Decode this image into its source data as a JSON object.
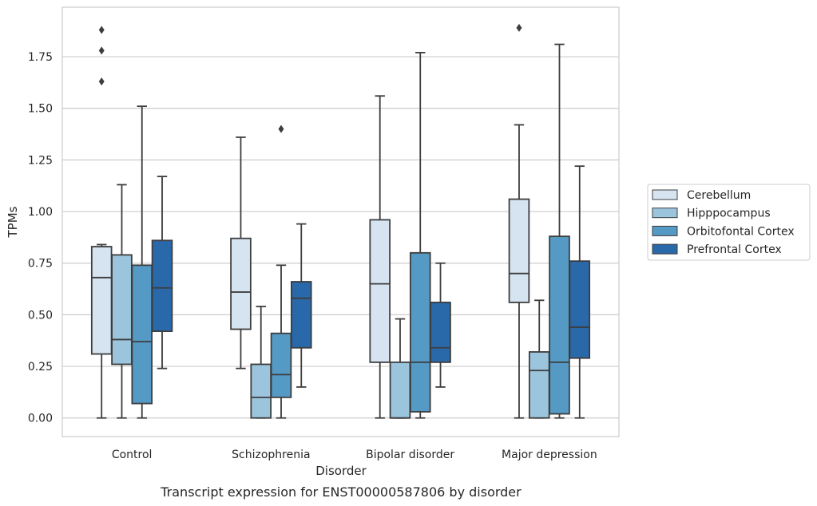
{
  "caption": "Transcript expression for ENST00000587806 by disorder",
  "chart_data": {
    "type": "box",
    "title": "",
    "xlabel": "Disorder",
    "ylabel": "TPMs",
    "ylim": [
      -0.09,
      1.99
    ],
    "yticks": [
      "0.00",
      "0.25",
      "0.50",
      "0.75",
      "1.00",
      "1.25",
      "1.50",
      "1.75"
    ],
    "categories": [
      "Control",
      "Schizophrenia",
      "Bipolar disorder",
      "Major depression"
    ],
    "grid": "horizontal",
    "legend_position": "right",
    "series": [
      {
        "name": "Cerebellum",
        "color": "#d6e4f2",
        "boxes": [
          {
            "min": 0.0,
            "q1": 0.31,
            "median": 0.68,
            "q3": 0.83,
            "max": 0.84,
            "outliers": [
              1.63,
              1.78,
              1.88
            ]
          },
          {
            "min": 0.24,
            "q1": 0.43,
            "median": 0.61,
            "q3": 0.87,
            "max": 1.36,
            "outliers": []
          },
          {
            "min": 0.0,
            "q1": 0.27,
            "median": 0.65,
            "q3": 0.96,
            "max": 1.56,
            "outliers": []
          },
          {
            "min": 0.0,
            "q1": 0.56,
            "median": 0.7,
            "q3": 1.06,
            "max": 1.42,
            "outliers": [
              1.89
            ]
          }
        ]
      },
      {
        "name": "Hipppocampus",
        "color": "#9bc4dd",
        "boxes": [
          {
            "min": 0.0,
            "q1": 0.26,
            "median": 0.38,
            "q3": 0.79,
            "max": 1.13,
            "outliers": []
          },
          {
            "min": 0.0,
            "q1": 0.0,
            "median": 0.1,
            "q3": 0.26,
            "max": 0.54,
            "outliers": []
          },
          {
            "min": 0.0,
            "q1": 0.0,
            "median": 0.0,
            "q3": 0.27,
            "max": 0.48,
            "outliers": []
          },
          {
            "min": 0.0,
            "q1": 0.0,
            "median": 0.23,
            "q3": 0.32,
            "max": 0.57,
            "outliers": []
          }
        ]
      },
      {
        "name": "Orbitofontal Cortex",
        "color": "#5599c5",
        "boxes": [
          {
            "min": 0.0,
            "q1": 0.07,
            "median": 0.37,
            "q3": 0.74,
            "max": 1.51,
            "outliers": []
          },
          {
            "min": 0.0,
            "q1": 0.1,
            "median": 0.21,
            "q3": 0.41,
            "max": 0.74,
            "outliers": [
              1.4
            ]
          },
          {
            "min": 0.0,
            "q1": 0.03,
            "median": 0.27,
            "q3": 0.8,
            "max": 1.77,
            "outliers": []
          },
          {
            "min": 0.0,
            "q1": 0.02,
            "median": 0.27,
            "q3": 0.88,
            "max": 1.81,
            "outliers": []
          }
        ]
      },
      {
        "name": "Prefrontal Cortex",
        "color": "#2a69a9",
        "boxes": [
          {
            "min": 0.24,
            "q1": 0.42,
            "median": 0.63,
            "q3": 0.86,
            "max": 1.17,
            "outliers": []
          },
          {
            "min": 0.15,
            "q1": 0.34,
            "median": 0.58,
            "q3": 0.66,
            "max": 0.94,
            "outliers": []
          },
          {
            "min": 0.15,
            "q1": 0.27,
            "median": 0.34,
            "q3": 0.56,
            "max": 0.75,
            "outliers": []
          },
          {
            "min": 0.0,
            "q1": 0.29,
            "median": 0.44,
            "q3": 0.76,
            "max": 1.22,
            "outliers": []
          }
        ]
      }
    ]
  }
}
